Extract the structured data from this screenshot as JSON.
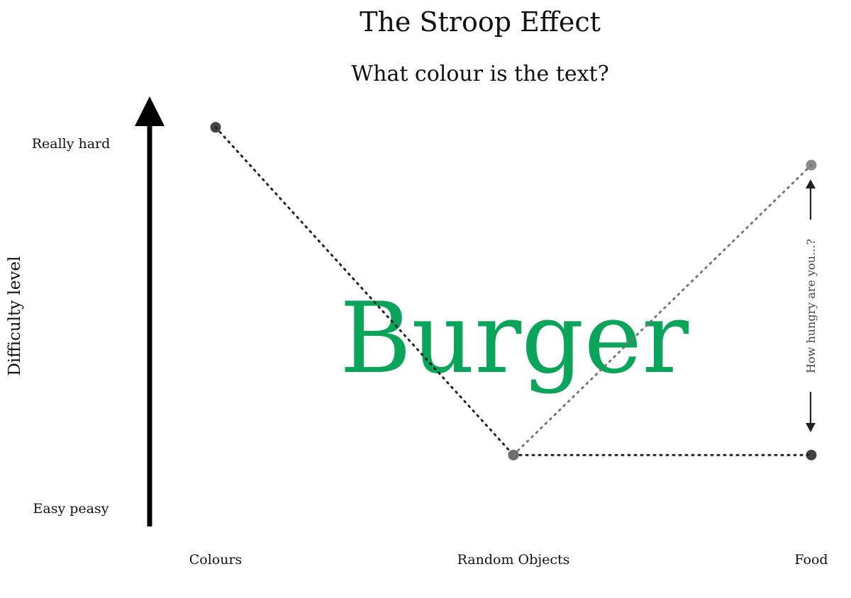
{
  "chart_data": {
    "type": "line",
    "title": "The Stroop Effect",
    "subtitle": "What colour is the text?",
    "ylabel": "Difficulty level",
    "xlabel": "",
    "categories": [
      "Colours",
      "Random Objects",
      "Food"
    ],
    "y_tick_labels": {
      "high": "Really hard",
      "low": "Easy peasy"
    },
    "ylim": [
      0,
      10
    ],
    "grid": false,
    "series": [
      {
        "values": [
          9.5,
          1.7,
          1.7
        ],
        "color": "#222222",
        "style": "dotted"
      },
      {
        "values": [
          null,
          1.7,
          8.6
        ],
        "color": "#777777",
        "style": "dotted"
      }
    ],
    "annotations": {
      "hunger_note": "How hungry are you...?",
      "center_word": "Burger",
      "center_word_color": "#0aa55a"
    }
  }
}
